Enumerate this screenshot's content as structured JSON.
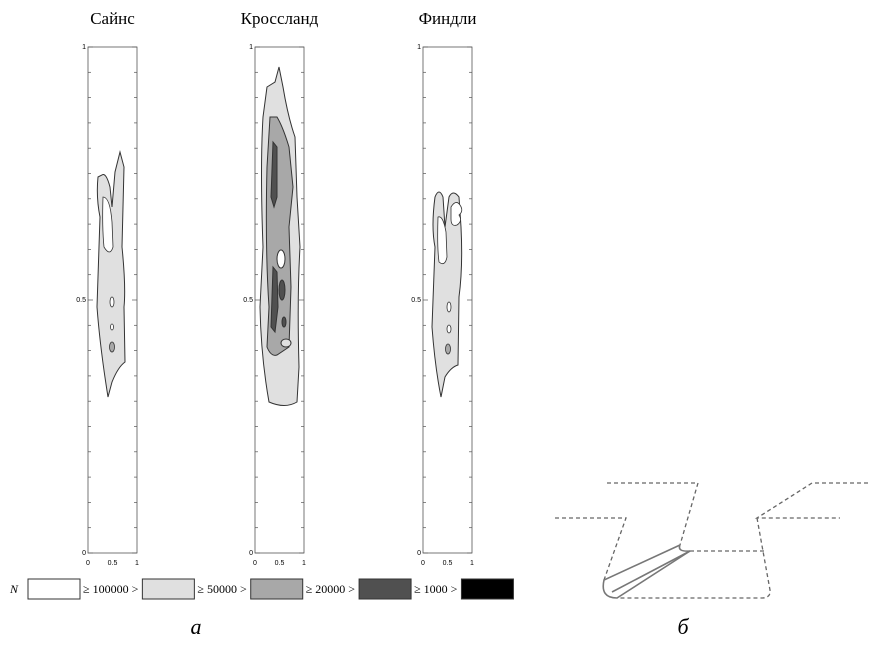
{
  "panels": [
    {
      "title": "Сайнс"
    },
    {
      "title": "Кроссланд"
    },
    {
      "title": "Финдли"
    }
  ],
  "axes": {
    "x_labels": [
      "0",
      "0.5",
      "1"
    ],
    "y_labels": [
      "0",
      "0.5",
      "1"
    ]
  },
  "legend": {
    "symbol": "N",
    "items": [
      {
        "color": "#ffffff",
        "label": "≥ 100000 >"
      },
      {
        "color": "#e0e0e0",
        "label": "≥ 50000 >"
      },
      {
        "color": "#a8a8a8",
        "label": "≥ 20000 >"
      },
      {
        "color": "#505050",
        "label": "≥ 1000 >"
      },
      {
        "color": "#000000"
      }
    ]
  },
  "captions": [
    "а",
    "б"
  ]
}
